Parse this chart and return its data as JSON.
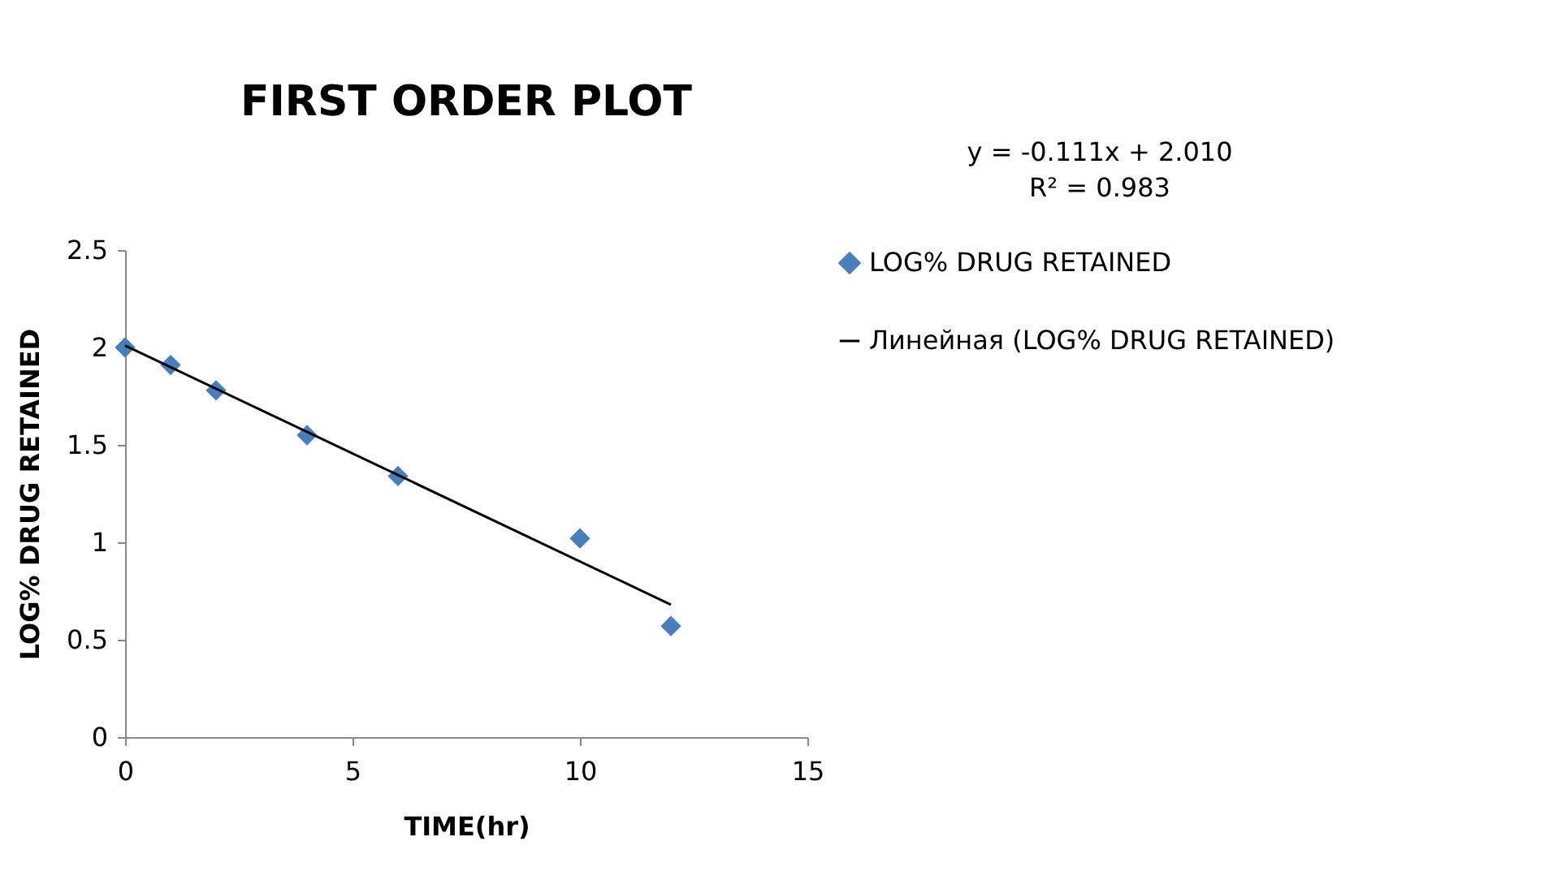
{
  "chart_data": {
    "type": "scatter",
    "title": "FIRST ORDER PLOT",
    "xlabel": "TIME(hr)",
    "ylabel": "LOG% DRUG RETAINED",
    "x": [
      0,
      1,
      2,
      4,
      6,
      10,
      12
    ],
    "series": [
      {
        "name": "LOG% DRUG RETAINED",
        "marker": "diamond",
        "color": "#4a7ebb",
        "values": [
          2.0,
          1.91,
          1.78,
          1.55,
          1.34,
          1.02,
          0.57
        ]
      },
      {
        "name": "Линейная (LOG% DRUG RETAINED)",
        "type": "line",
        "marker": "none",
        "color": "#000000",
        "x": [
          0,
          12
        ],
        "values": [
          2.01,
          0.68
        ]
      }
    ],
    "annotations": [
      "y = -0.111x + 2.010",
      "R² = 0.983"
    ],
    "xlim": [
      0,
      15
    ],
    "xticks": [
      0,
      5,
      10,
      15
    ],
    "ylim": [
      0,
      2.5
    ],
    "yticks": [
      0,
      0.5,
      1,
      1.5,
      2,
      2.5
    ],
    "grid": false,
    "legend": "right"
  }
}
